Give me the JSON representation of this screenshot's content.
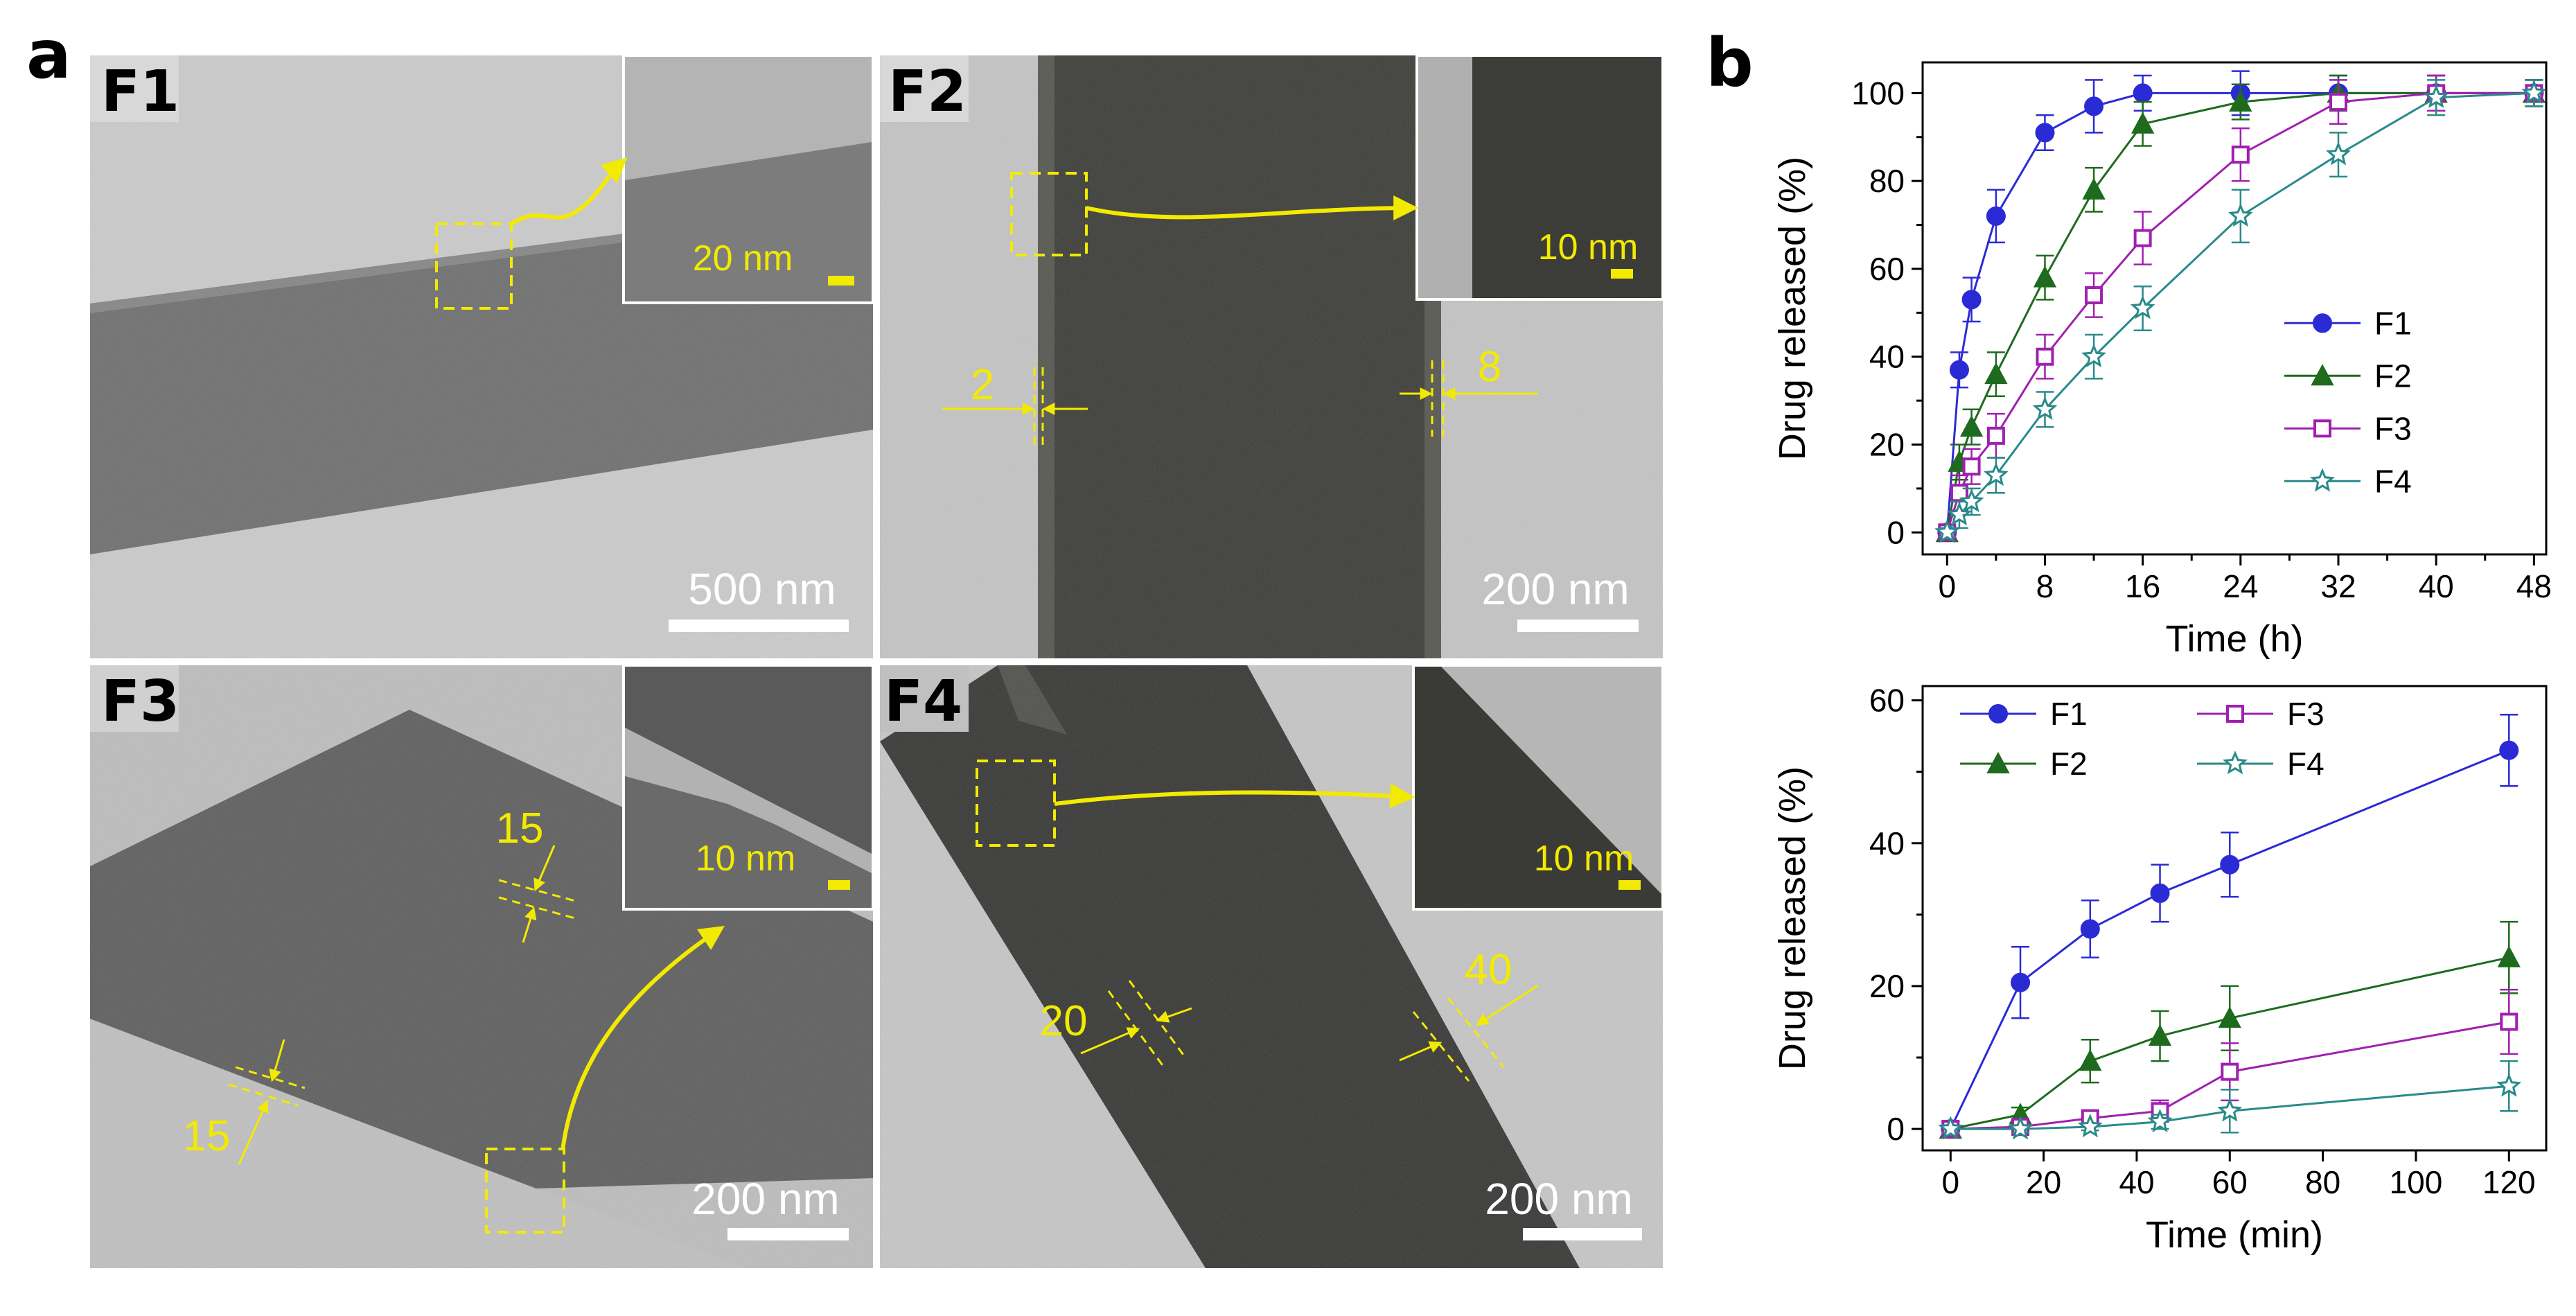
{
  "panel_a": {
    "letter": "a",
    "micrographs": [
      {
        "label": "F1",
        "scalebar": "500 nm",
        "inset_scalebar": "20 nm",
        "thickness_labels": []
      },
      {
        "label": "F2",
        "scalebar": "200 nm",
        "inset_scalebar": "10 nm",
        "thickness_labels": [
          "2",
          "8"
        ]
      },
      {
        "label": "F3",
        "scalebar": "200 nm",
        "inset_scalebar": "10 nm",
        "thickness_labels": [
          "15",
          "15"
        ]
      },
      {
        "label": "F4",
        "scalebar": "200 nm",
        "inset_scalebar": "10 nm",
        "thickness_labels": [
          "20",
          "40"
        ]
      }
    ]
  },
  "panel_b": {
    "letter": "b"
  },
  "colors": {
    "F1": "#2b2bd6",
    "F2": "#1e6b1e",
    "F3": "#a020b0",
    "F4": "#2a8a8a",
    "annotation": "#f2ea00"
  },
  "chart_data": [
    {
      "type": "line",
      "xlabel": "Time (h)",
      "ylabel": "Drug released (%)",
      "xlim": [
        -2,
        49
      ],
      "ylim": [
        -5,
        107
      ],
      "xticks": [
        0,
        4,
        8,
        12,
        16,
        20,
        24,
        28,
        32,
        36,
        40,
        44,
        48
      ],
      "xtick_labels": [
        "0",
        "",
        "8",
        "",
        "16",
        "",
        "24",
        "",
        "32",
        "",
        "40",
        "",
        "48"
      ],
      "yticks": [
        0,
        20,
        40,
        60,
        80,
        100
      ],
      "legend": "center-right",
      "series": [
        {
          "name": "F1",
          "marker": "circle",
          "x": [
            0,
            1,
            2,
            4,
            8,
            12,
            16,
            24,
            32,
            40,
            48
          ],
          "y": [
            0,
            37,
            53,
            72,
            91,
            97,
            100,
            100,
            100,
            100,
            100
          ],
          "err": [
            1,
            4,
            5,
            6,
            4,
            6,
            4,
            5,
            4,
            4,
            3
          ]
        },
        {
          "name": "F2",
          "marker": "triangle",
          "x": [
            0,
            1,
            2,
            4,
            8,
            12,
            16,
            24,
            32,
            40,
            48
          ],
          "y": [
            0,
            16,
            24,
            36,
            58,
            78,
            93,
            98,
            100,
            100,
            100
          ],
          "err": [
            1,
            4,
            4,
            5,
            5,
            5,
            5,
            4,
            4,
            4,
            3
          ]
        },
        {
          "name": "F3",
          "marker": "square",
          "x": [
            0,
            1,
            2,
            4,
            8,
            12,
            16,
            24,
            32,
            40,
            48
          ],
          "y": [
            0,
            9,
            15,
            22,
            40,
            54,
            67,
            86,
            98,
            100,
            100
          ],
          "err": [
            1,
            4,
            4,
            5,
            5,
            5,
            6,
            6,
            5,
            4,
            3
          ]
        },
        {
          "name": "F4",
          "marker": "star",
          "x": [
            0,
            1,
            2,
            4,
            8,
            12,
            16,
            24,
            32,
            40,
            48
          ],
          "y": [
            0,
            4,
            7,
            13,
            28,
            40,
            51,
            72,
            86,
            99,
            100
          ],
          "err": [
            1,
            3,
            3,
            4,
            4,
            5,
            5,
            6,
            5,
            4,
            3
          ]
        }
      ]
    },
    {
      "type": "line",
      "xlabel": "Time (min)",
      "ylabel": "Drug released (%)",
      "xlim": [
        -6,
        128
      ],
      "ylim": [
        -3,
        62
      ],
      "xticks": [
        0,
        20,
        40,
        60,
        80,
        100,
        120
      ],
      "xtick_labels": [
        "0",
        "20",
        "40",
        "60",
        "80",
        "100",
        "120"
      ],
      "yticks": [
        0,
        20,
        40,
        60
      ],
      "legend": "top-left",
      "series": [
        {
          "name": "F1",
          "marker": "circle",
          "x": [
            0,
            15,
            30,
            45,
            60,
            120
          ],
          "y": [
            0,
            20.5,
            28,
            33,
            37,
            53
          ],
          "err": [
            1,
            5,
            4,
            4,
            4.5,
            5
          ]
        },
        {
          "name": "F2",
          "marker": "triangle",
          "x": [
            0,
            15,
            30,
            45,
            60,
            120
          ],
          "y": [
            0,
            2,
            9.5,
            13,
            15.5,
            24
          ],
          "err": [
            1,
            1,
            3,
            3.5,
            4.5,
            5
          ]
        },
        {
          "name": "F3",
          "marker": "square",
          "x": [
            0,
            15,
            30,
            45,
            60,
            120
          ],
          "y": [
            0,
            0.3,
            1.5,
            2.5,
            8,
            15
          ],
          "err": [
            0.5,
            0.5,
            1,
            1.5,
            4,
            4.5
          ]
        },
        {
          "name": "F4",
          "marker": "star",
          "x": [
            0,
            15,
            30,
            45,
            60,
            120
          ],
          "y": [
            0,
            0,
            0.3,
            1,
            2.5,
            6
          ],
          "err": [
            0.5,
            0.5,
            0.5,
            1,
            3,
            3.5
          ]
        }
      ]
    }
  ]
}
